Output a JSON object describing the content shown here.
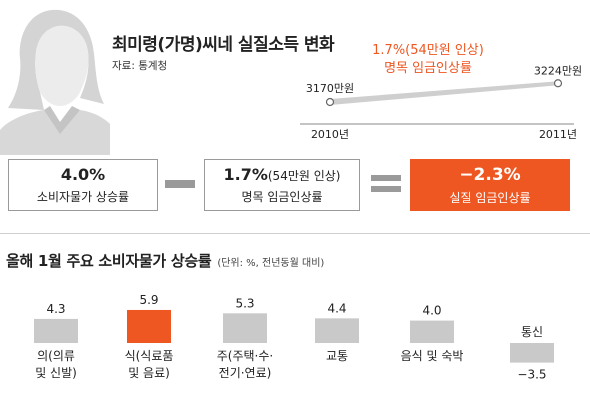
{
  "header": {
    "title": "최미령(가명)씨네 실질소득 변화",
    "source": "자료: 통계청"
  },
  "trend": {
    "caption_line1": "1.7%(54만원 인상)",
    "caption_line2": "명목 임금인상률",
    "start_label": "3170만원",
    "end_label": "3224만원",
    "start_year": "2010년",
    "end_year": "2011년",
    "start_value": 3170,
    "end_value": 3224
  },
  "equation": {
    "cpi_value": "4.0%",
    "cpi_label": "소비자물가 상승률",
    "nominal_value": "1.7%",
    "nominal_note": "(54만원 인상)",
    "nominal_label": "명목 임금인상률",
    "real_value": "−2.3%",
    "real_label": "실질 임금인상률"
  },
  "colors": {
    "accent": "#ee5622",
    "bar_gray": "#c9c9c9",
    "rule_gray": "#9a9a9a"
  },
  "chart_data": {
    "type": "bar",
    "title": "올해 1월 주요 소비자물가 상승률",
    "unit_note": "(단위: %, 전년동월 대비)",
    "categories": [
      [
        "의(의류",
        "및 신발)"
      ],
      [
        "식(식료품",
        "및 음료)"
      ],
      [
        "주(주택·수·",
        "전기·연료)"
      ],
      [
        "교통"
      ],
      [
        "음식 및 숙박"
      ],
      [
        "통신"
      ]
    ],
    "values": [
      4.3,
      5.9,
      5.3,
      4.4,
      4.0,
      -3.5
    ],
    "value_labels": [
      "4.3",
      "5.9",
      "5.3",
      "4.4",
      "4.0",
      "−3.5"
    ],
    "highlight_index": 1,
    "xlabel": "",
    "ylabel": "",
    "legend": "none",
    "grid": false
  }
}
